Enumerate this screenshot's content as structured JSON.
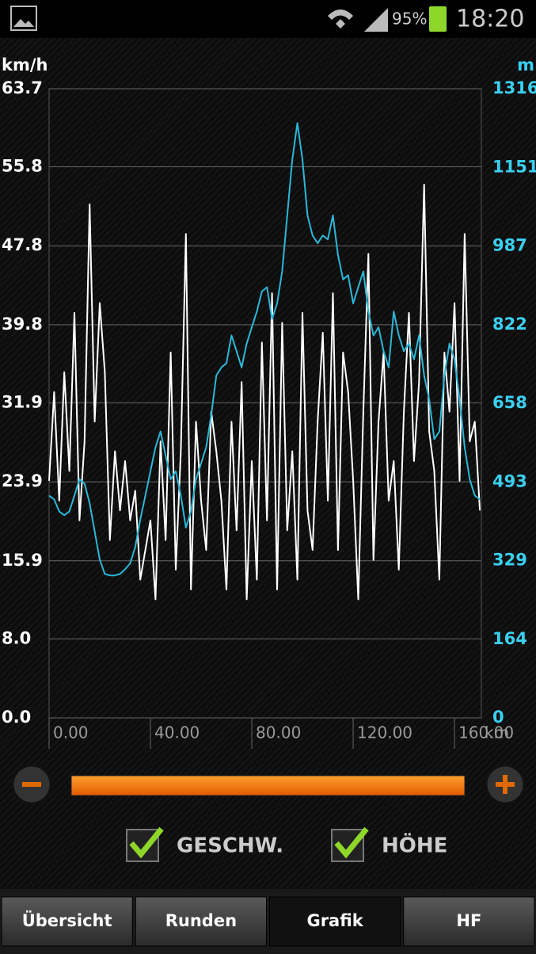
{
  "status_bar": {
    "battery": "95%",
    "time": "18:20"
  },
  "chart_data": {
    "type": "line",
    "y_label": "km/h",
    "y2_label": "m",
    "x_label": "km",
    "xlim": [
      0,
      170.6
    ],
    "xticks": [
      {
        "value": 0,
        "label": "0.00"
      },
      {
        "value": 40,
        "label": "40.00"
      },
      {
        "value": 80,
        "label": "80.00"
      },
      {
        "value": 120,
        "label": "120.00"
      },
      {
        "value": 160,
        "label": "160.00"
      }
    ],
    "ylim": [
      0,
      63.7
    ],
    "yticks": [
      {
        "value": 0,
        "label": "0.0"
      },
      {
        "value": 8,
        "label": "8.0"
      },
      15.9,
      23.9,
      31.9,
      39.8,
      47.8,
      55.8,
      63.7
    ],
    "y2lim": [
      0,
      1316
    ],
    "y2ticks": [
      0,
      164,
      329,
      493,
      658,
      822,
      987,
      1151,
      1316
    ],
    "grid": true,
    "x": [
      0,
      2,
      4,
      6,
      8,
      10,
      12,
      14,
      16,
      18,
      20,
      22,
      24,
      26,
      28,
      30,
      32,
      34,
      36,
      38,
      40,
      42,
      44,
      46,
      48,
      50,
      52,
      54,
      56,
      58,
      60,
      62,
      64,
      66,
      68,
      70,
      72,
      74,
      76,
      78,
      80,
      82,
      84,
      86,
      88,
      90,
      92,
      94,
      96,
      98,
      100,
      102,
      104,
      106,
      108,
      110,
      112,
      114,
      116,
      118,
      120,
      122,
      124,
      126,
      128,
      130,
      132,
      134,
      136,
      138,
      140,
      142,
      144,
      146,
      148,
      150,
      152,
      154,
      156,
      158,
      160,
      162,
      164,
      166,
      168,
      170
    ],
    "series": [
      {
        "name": "GESCHW.",
        "color": "#ffffff",
        "values": [
          24,
          33,
          22,
          35,
          25,
          41,
          20,
          28,
          52,
          30,
          42,
          35,
          18,
          27,
          21,
          26,
          20,
          23,
          14,
          17,
          20,
          12,
          28,
          18,
          37,
          15,
          27,
          49,
          13,
          30,
          22,
          17,
          31,
          27,
          22,
          13,
          30,
          19,
          34,
          12,
          26,
          14,
          38,
          20,
          43,
          13,
          40,
          19,
          27,
          14,
          41,
          21,
          17,
          30,
          39,
          22,
          43,
          17,
          37,
          33,
          24,
          12,
          31,
          47,
          16,
          30,
          37,
          22,
          26,
          15,
          31,
          41,
          26,
          34,
          54,
          29,
          25,
          14,
          37,
          31,
          42,
          24,
          49,
          28,
          30,
          21
        ]
      },
      {
        "name": "HÖHE",
        "color": "#2ab8d8",
        "axis": "y2",
        "values": [
          465,
          457,
          432,
          424,
          432,
          465,
          499,
          490,
          449,
          390,
          331,
          301,
          298,
          298,
          301,
          311,
          323,
          357,
          415,
          465,
          516,
          566,
          599,
          549,
          499,
          516,
          465,
          398,
          432,
          499,
          532,
          566,
          633,
          716,
          733,
          742,
          800,
          767,
          733,
          783,
          817,
          850,
          892,
          901,
          834,
          867,
          934,
          1051,
          1168,
          1244,
          1168,
          1051,
          1009,
          993,
          1009,
          1001,
          1051,
          968,
          917,
          926,
          867,
          901,
          934,
          850,
          800,
          817,
          767,
          733,
          850,
          800,
          767,
          783,
          750,
          800,
          716,
          666,
          583,
          599,
          716,
          783,
          750,
          666,
          566,
          499,
          465,
          457
        ]
      }
    ]
  },
  "tabs": [
    "Übersicht",
    "Runden",
    "Grafik",
    "HF"
  ]
}
